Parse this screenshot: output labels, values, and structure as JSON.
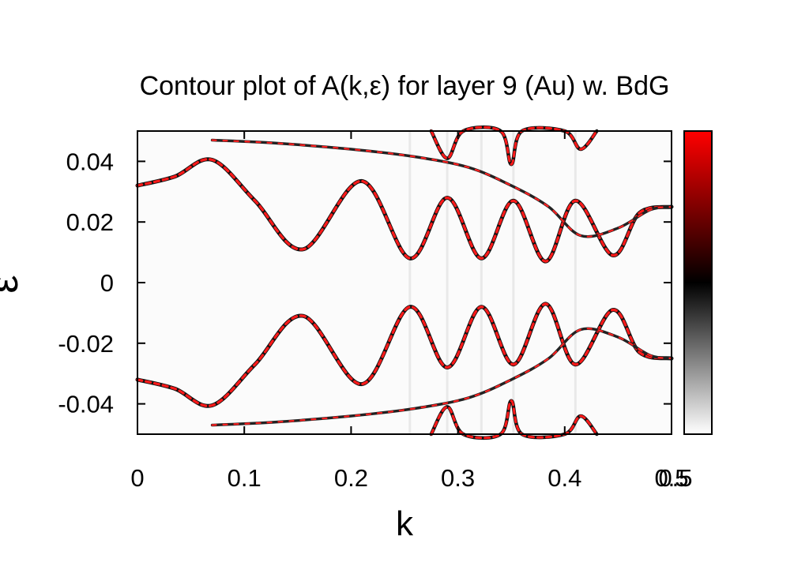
{
  "chart_data": {
    "type": "heatmap",
    "title": "Contour plot of A(k,ε)  for layer 9 (Au) w. BdG",
    "xlabel": "k",
    "ylabel": "ε",
    "xlim": [
      0,
      0.5
    ],
    "ylim": [
      -0.05,
      0.05
    ],
    "x_ticks": [
      "0",
      "0.1",
      "0.2",
      "0.3",
      "0.4",
      "0.5"
    ],
    "y_ticks": [
      "0.04",
      "0.02",
      "0",
      "-0.02",
      "-0.04"
    ],
    "colorbar": {
      "range": [
        0,
        0.5
      ],
      "tick_labels": [
        "0.5"
      ],
      "colors": [
        "#ffffff",
        "#000000",
        "#ff0000"
      ]
    },
    "series": [
      {
        "x": [
          0,
          0.035,
          0.07,
          0.11,
          0.155,
          0.21,
          0.255,
          0.29,
          0.322,
          0.352,
          0.382,
          0.41,
          0.445,
          0.47,
          0.5
        ],
        "values": [
          0.032,
          0.035,
          0.0405,
          0.027,
          0.011,
          0.0335,
          0.008,
          0.028,
          0.008,
          0.027,
          0.007,
          0.027,
          0.009,
          0.023,
          0.025
        ]
      },
      {
        "x": [
          0.07,
          0.13,
          0.2,
          0.26,
          0.31,
          0.35,
          0.385,
          0.415,
          0.45,
          0.48,
          0.5
        ],
        "values": [
          0.047,
          0.046,
          0.044,
          0.0415,
          0.038,
          0.032,
          0.025,
          0.0155,
          0.018,
          0.024,
          0.025
        ]
      },
      {
        "x": [
          0.275,
          0.29,
          0.305,
          0.34,
          0.35,
          0.36,
          0.4,
          0.415,
          0.43
        ],
        "values": [
          0.05,
          0.041,
          0.05,
          0.05,
          0.039,
          0.05,
          0.05,
          0.044,
          0.05
        ]
      }
    ]
  }
}
